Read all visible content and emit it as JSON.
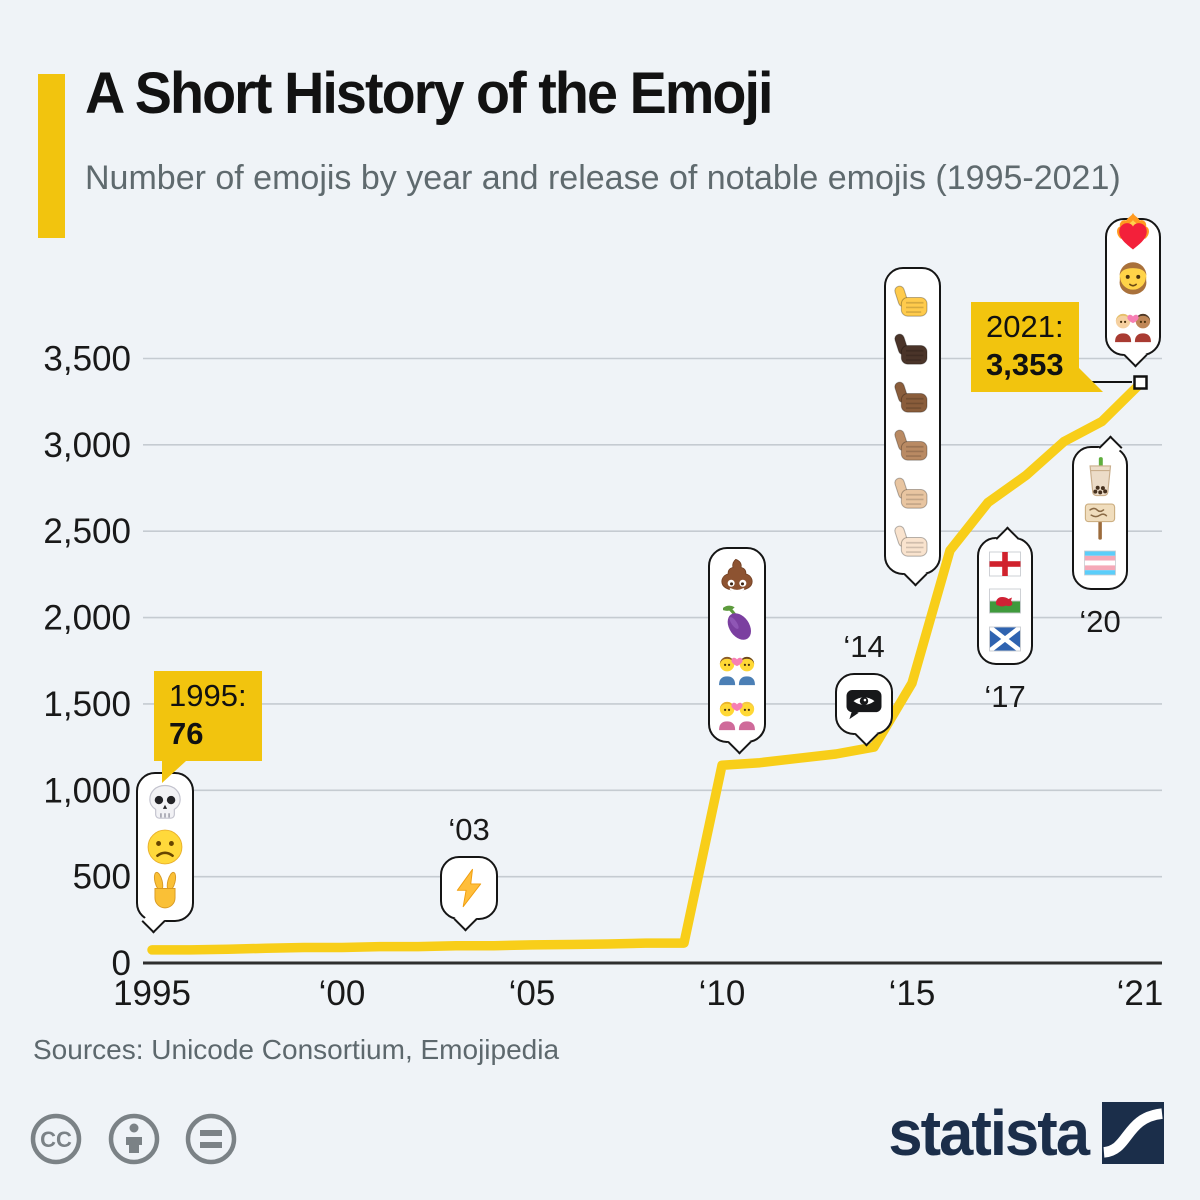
{
  "header": {
    "title": "A Short History of the Emoji",
    "subtitle": "Number of emojis by year and release of notable emojis (1995-2021)"
  },
  "footer": {
    "sources": "Sources: Unicode Consortium, Emojipedia",
    "brand": "statista",
    "license_icons": [
      "cc",
      "attribution",
      "no-derivatives"
    ]
  },
  "colors": {
    "background": "#eff3f7",
    "accent_yellow": "#f2c40e",
    "line_yellow": "#f8ce19",
    "grid": "#c5cbd1",
    "axis": "#2e2e2e",
    "navy": "#1b2e4a",
    "text_gray": "#5f6a6e"
  },
  "chart_data": {
    "type": "line",
    "title": "A Short History of the Emoji",
    "subtitle": "Number of emojis by year and release of notable emojis (1995-2021)",
    "xlabel": "",
    "ylabel": "",
    "ylim": [
      0,
      3500
    ],
    "grid": true,
    "line_color": "#f8ce19",
    "x": [
      1995,
      1996,
      1997,
      1998,
      1999,
      2000,
      2001,
      2002,
      2003,
      2004,
      2005,
      2006,
      2007,
      2008,
      2009,
      2010,
      2011,
      2012,
      2013,
      2014,
      2015,
      2016,
      2017,
      2018,
      2019,
      2020,
      2021
    ],
    "series": [
      {
        "name": "Number of emojis",
        "values": [
          76,
          76,
          80,
          85,
          90,
          90,
          95,
          95,
          100,
          100,
          105,
          107,
          110,
          115,
          115,
          1145,
          1160,
          1185,
          1210,
          1250,
          1620,
          2389,
          2666,
          2823,
          3019,
          3136,
          3353
        ]
      }
    ],
    "yticks": [
      {
        "value": 0,
        "label": "0"
      },
      {
        "value": 500,
        "label": "500"
      },
      {
        "value": 1000,
        "label": "1,000"
      },
      {
        "value": 1500,
        "label": "1,500"
      },
      {
        "value": 2000,
        "label": "2,000"
      },
      {
        "value": 2500,
        "label": "2,500"
      },
      {
        "value": 3000,
        "label": "3,000"
      },
      {
        "value": 3500,
        "label": "3,500"
      }
    ],
    "xticks": [
      {
        "value": 1995,
        "label": "1995"
      },
      {
        "value": 2000,
        "label": "‘00"
      },
      {
        "value": 2005,
        "label": "‘05"
      },
      {
        "value": 2010,
        "label": "‘10"
      },
      {
        "value": 2015,
        "label": "‘15"
      },
      {
        "value": 2021,
        "label": "‘21"
      }
    ],
    "annotations": {
      "start": {
        "title": "1995:",
        "value": "76",
        "year": 1995,
        "count": 76
      },
      "end": {
        "title": "2021:",
        "value": "3,353",
        "year": 2021,
        "count": 3353
      }
    },
    "callouts": [
      {
        "id": "1995",
        "label": "",
        "emojis": [
          {
            "name": "skull",
            "char": "💀"
          },
          {
            "name": "frowning-face",
            "char": "☹️"
          },
          {
            "name": "victory-hand",
            "char": "✌️"
          }
        ]
      },
      {
        "id": "2003",
        "label": "‘03",
        "emojis": [
          {
            "name": "high-voltage",
            "char": "⚡"
          }
        ]
      },
      {
        "id": "2010",
        "label": "",
        "emojis": [
          {
            "name": "pile-of-poo",
            "char": "💩"
          },
          {
            "name": "eggplant",
            "char": "🍆"
          },
          {
            "name": "couple-with-heart-men",
            "char": "👨‍❤️‍👨"
          },
          {
            "name": "couple-with-heart-women",
            "char": "👩‍❤️‍👩"
          }
        ]
      },
      {
        "id": "2014",
        "label": "‘14",
        "emojis": [
          {
            "name": "eye-in-speech-bubble",
            "char": "👁️‍🗨️"
          }
        ]
      },
      {
        "id": "2015",
        "label": "",
        "emojis": [
          {
            "name": "thumbs-up-yellow",
            "char": "👍"
          },
          {
            "name": "thumbs-up-dark",
            "char": "👍🏿"
          },
          {
            "name": "thumbs-up-medium-dark",
            "char": "👍🏾"
          },
          {
            "name": "thumbs-up-medium",
            "char": "👍🏽"
          },
          {
            "name": "thumbs-up-medium-light",
            "char": "👍🏼"
          },
          {
            "name": "thumbs-up-light",
            "char": "👍🏻"
          }
        ]
      },
      {
        "id": "2017",
        "label": "‘17",
        "emojis": [
          {
            "name": "flag-england",
            "char": "🏴󠁧󠁢󠁥󠁮󠁧󠁿"
          },
          {
            "name": "flag-wales",
            "char": "🏴󠁧󠁢󠁷󠁬󠁳󠁿"
          },
          {
            "name": "flag-scotland",
            "char": "🏴󠁧󠁢󠁳󠁣󠁴󠁿"
          }
        ]
      },
      {
        "id": "2020",
        "label": "‘20",
        "emojis": [
          {
            "name": "bubble-tea",
            "char": "🧋"
          },
          {
            "name": "placard",
            "char": "🪧"
          },
          {
            "name": "transgender-flag",
            "char": "🏳️‍⚧️"
          }
        ]
      },
      {
        "id": "2021",
        "label": "",
        "emojis": [
          {
            "name": "heart-on-fire",
            "char": "❤️‍🔥"
          },
          {
            "name": "person-beard",
            "char": "🧔"
          },
          {
            "name": "couple-with-heart-mixed",
            "char": "👩🏼‍❤️‍👨🏽"
          }
        ]
      }
    ]
  }
}
